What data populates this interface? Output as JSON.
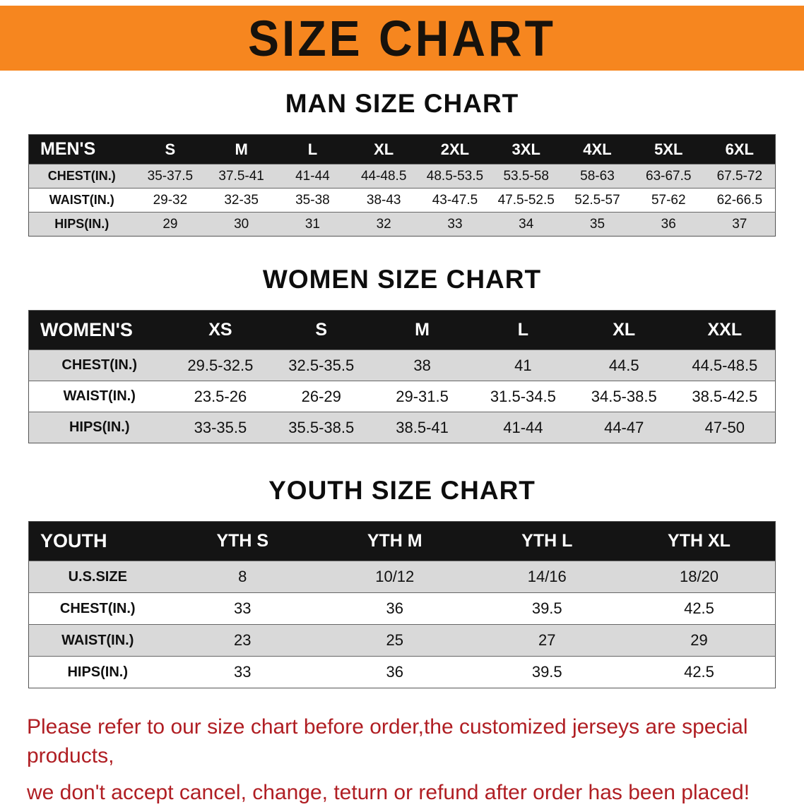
{
  "banner": {
    "title": "SIZE CHART",
    "bg_color": "#f6861f",
    "text_color": "#17120c"
  },
  "table_style": {
    "header_bg": "#141414",
    "header_text": "#ffffff",
    "stripe_color": "#d9d9d9"
  },
  "chart_data": [
    {
      "type": "table",
      "title": "MAN SIZE CHART",
      "columns": [
        "MEN'S",
        "S",
        "M",
        "L",
        "XL",
        "2XL",
        "3XL",
        "4XL",
        "5XL",
        "6XL"
      ],
      "rows": [
        [
          "CHEST(IN.)",
          "35-37.5",
          "37.5-41",
          "41-44",
          "44-48.5",
          "48.5-53.5",
          "53.5-58",
          "58-63",
          "63-67.5",
          "67.5-72"
        ],
        [
          "WAIST(IN.)",
          "29-32",
          "32-35",
          "35-38",
          "38-43",
          "43-47.5",
          "47.5-52.5",
          "52.5-57",
          "57-62",
          "62-66.5"
        ],
        [
          "HIPS(IN.)",
          "29",
          "30",
          "31",
          "32",
          "33",
          "34",
          "35",
          "36",
          "37"
        ]
      ]
    },
    {
      "type": "table",
      "title": "WOMEN SIZE CHART",
      "columns": [
        "WOMEN'S",
        "XS",
        "S",
        "M",
        "L",
        "XL",
        "XXL"
      ],
      "rows": [
        [
          "CHEST(IN.)",
          "29.5-32.5",
          "32.5-35.5",
          "38",
          "41",
          "44.5",
          "44.5-48.5"
        ],
        [
          "WAIST(IN.)",
          "23.5-26",
          "26-29",
          "29-31.5",
          "31.5-34.5",
          "34.5-38.5",
          "38.5-42.5"
        ],
        [
          "HIPS(IN.)",
          "33-35.5",
          "35.5-38.5",
          "38.5-41",
          "41-44",
          "44-47",
          "47-50"
        ]
      ]
    },
    {
      "type": "table",
      "title": "YOUTH SIZE CHART",
      "columns": [
        "YOUTH",
        "YTH S",
        "YTH M",
        "YTH L",
        "YTH XL"
      ],
      "rows": [
        [
          "U.S.SIZE",
          "8",
          "10/12",
          "14/16",
          "18/20"
        ],
        [
          "CHEST(IN.)",
          "33",
          "36",
          "39.5",
          "42.5"
        ],
        [
          "WAIST(IN.)",
          "23",
          "25",
          "27",
          "29"
        ],
        [
          "HIPS(IN.)",
          "33",
          "36",
          "39.5",
          "42.5"
        ]
      ]
    }
  ],
  "footer": {
    "color": "#b01e23",
    "lines": [
      "Please refer to our size chart before order,the customized jerseys are special products,",
      "we don't accept cancel, change, teturn or refund after order has been placed!"
    ]
  }
}
